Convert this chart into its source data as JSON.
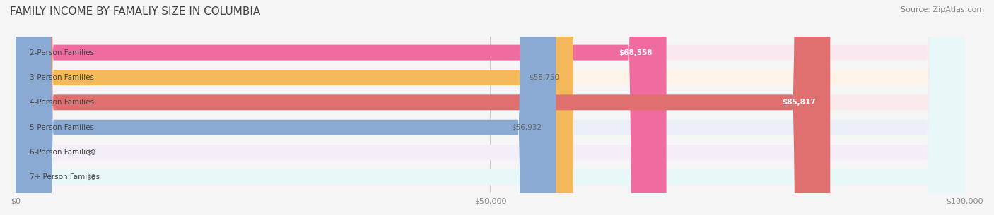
{
  "title": "FAMILY INCOME BY FAMALIY SIZE IN COLUMBIA",
  "source": "Source: ZipAtlas.com",
  "categories": [
    "2-Person Families",
    "3-Person Families",
    "4-Person Families",
    "5-Person Families",
    "6-Person Families",
    "7+ Person Families"
  ],
  "values": [
    68558,
    58750,
    85817,
    56932,
    0,
    0
  ],
  "bar_colors": [
    "#f06ba0",
    "#f5b85a",
    "#e07070",
    "#8aaad4",
    "#c3a8d1",
    "#7ecece"
  ],
  "bg_colors": [
    "#f9e8ef",
    "#fdf3e7",
    "#faeaea",
    "#eaeff8",
    "#f3eef7",
    "#e8f7f7"
  ],
  "label_colors": [
    "white",
    "#888888",
    "white",
    "#888888",
    "#888888",
    "#888888"
  ],
  "xmax": 100000,
  "xticks": [
    0,
    50000,
    100000
  ],
  "xtick_labels": [
    "$0",
    "$50,000",
    "$100,000"
  ],
  "title_fontsize": 11,
  "source_fontsize": 8,
  "bar_height": 0.62,
  "background_color": "#f5f5f5"
}
